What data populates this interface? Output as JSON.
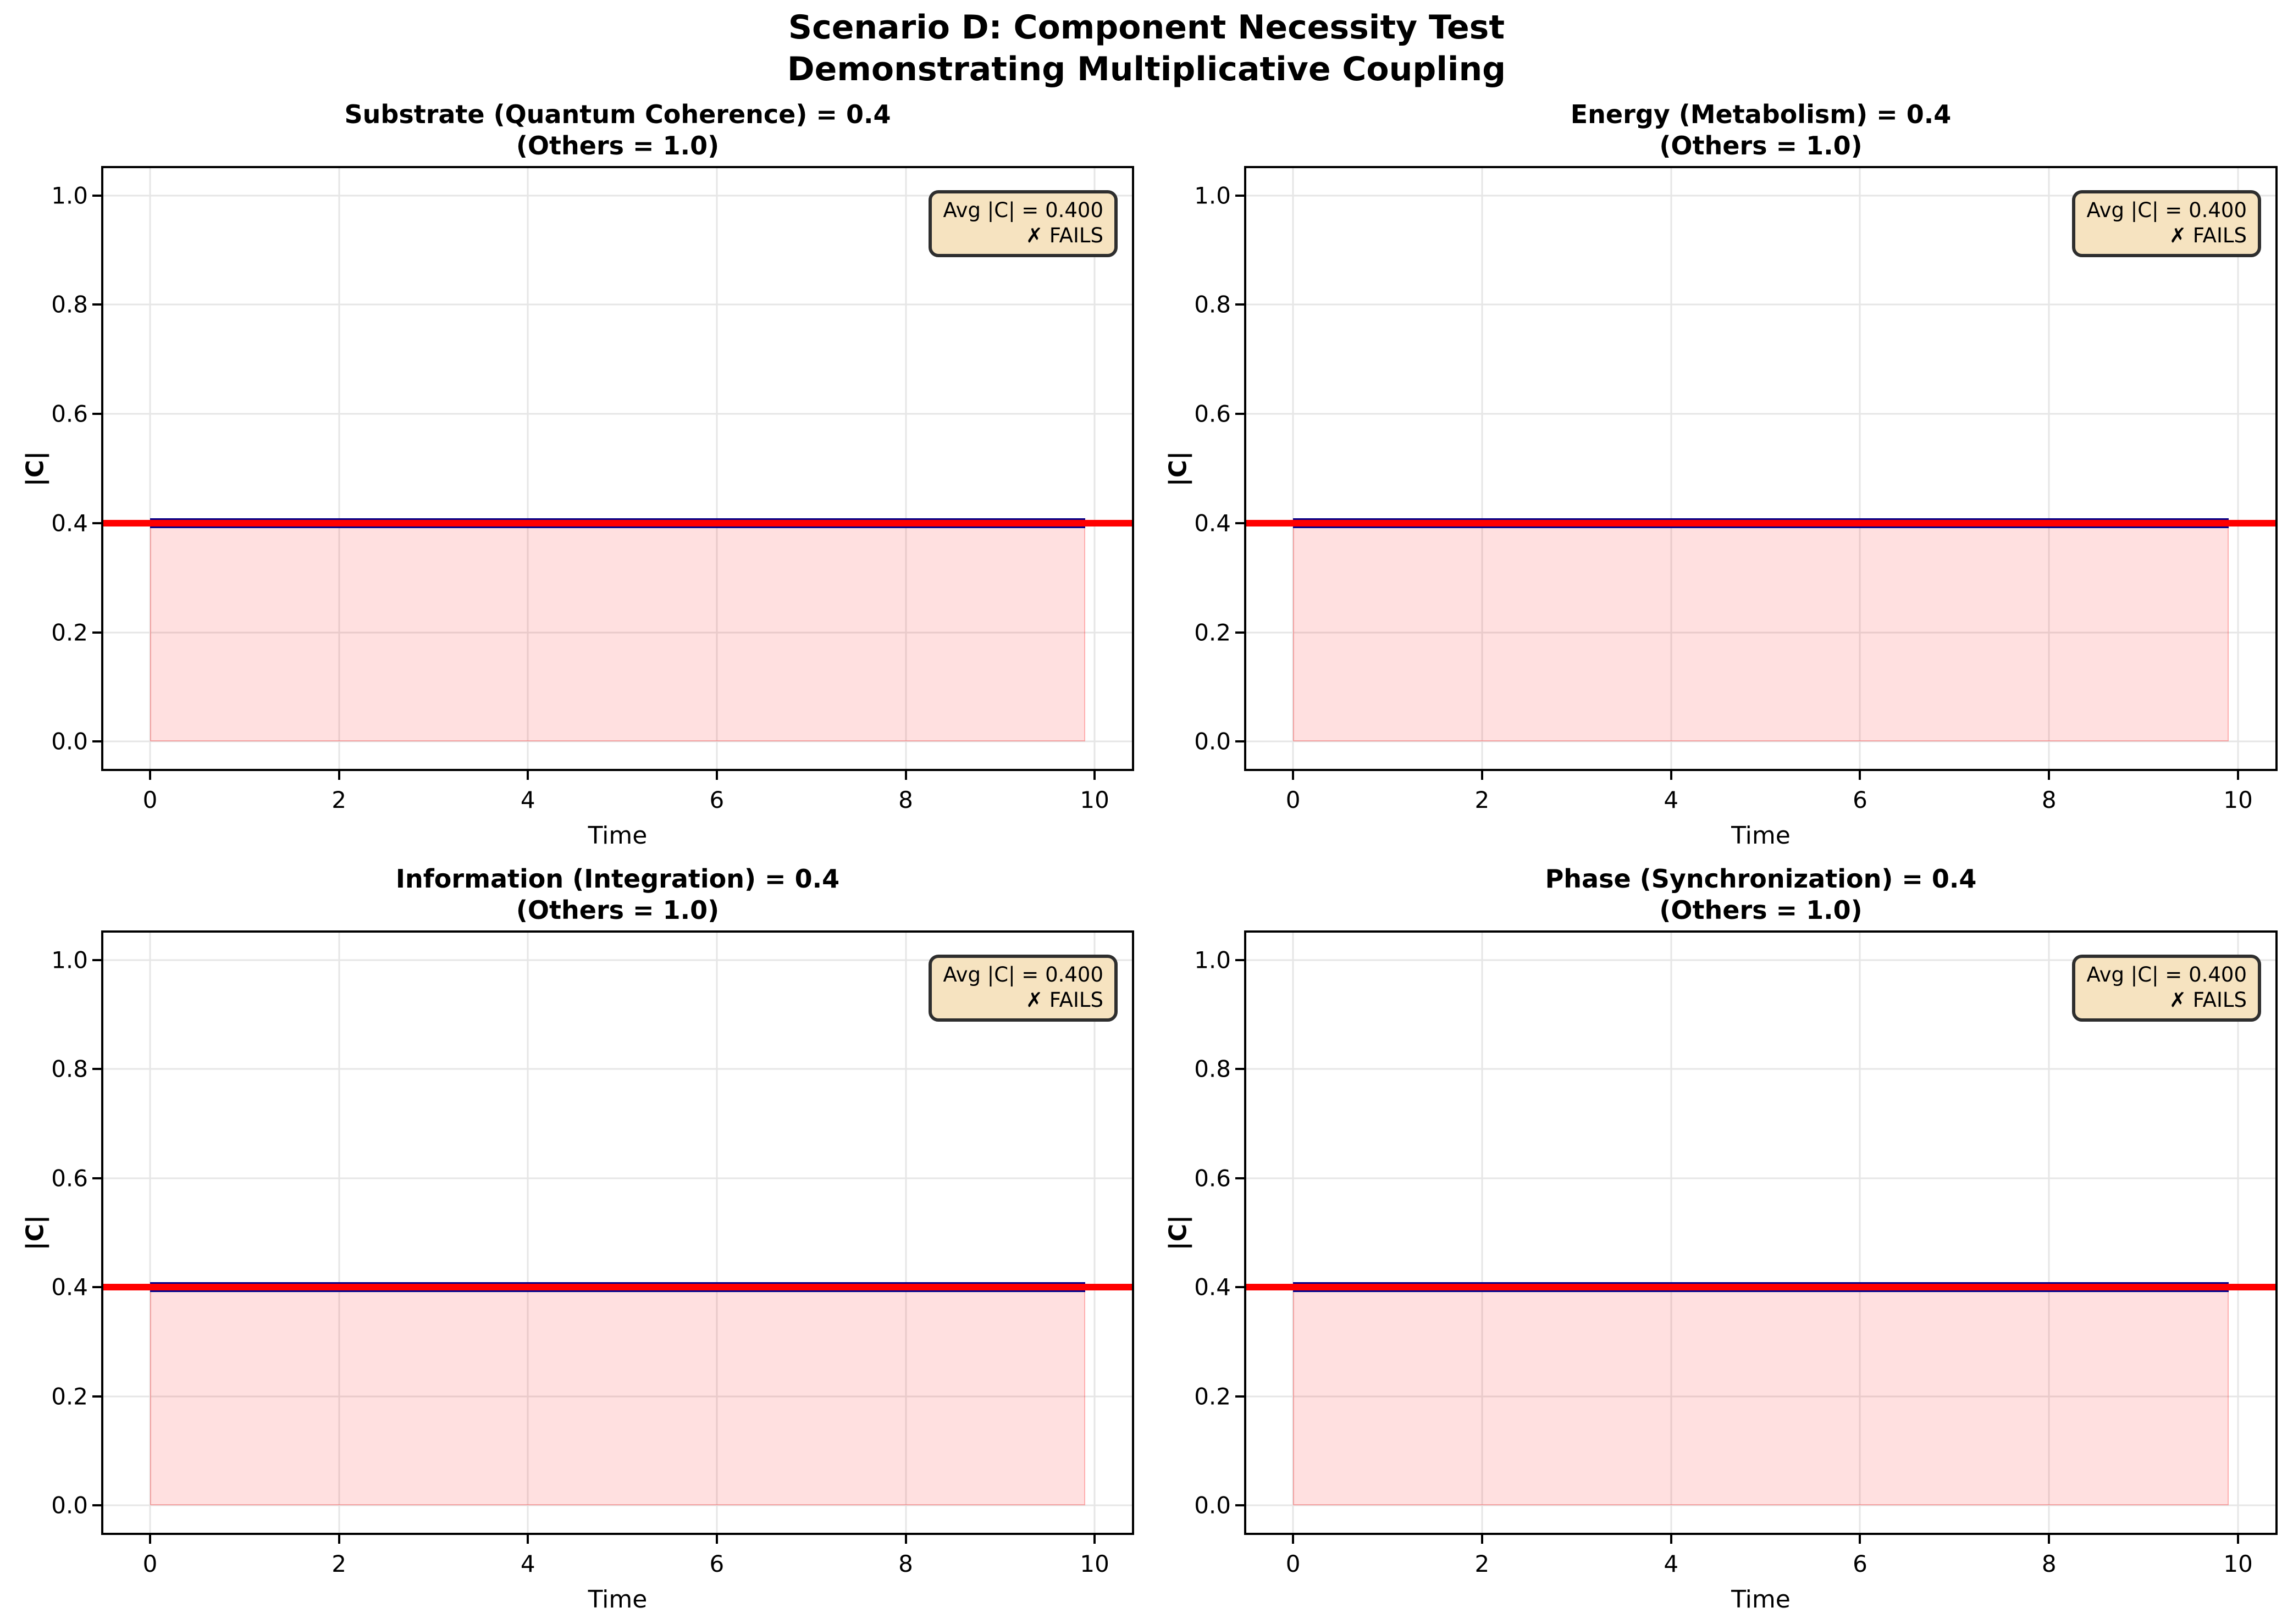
{
  "figure": {
    "suptitle_line1": "Scenario D: Component Necessity Test",
    "suptitle_line2": "Demonstrating Multiplicative Coupling"
  },
  "colors": {
    "threshold_line": "#ff0000",
    "series_line": "#00008b",
    "fill": "rgba(255,0,0,0.12)",
    "fill_edge": "rgba(255,0,0,0.22)",
    "annotation_bg": "#f6e3c0",
    "annotation_border": "#2e2e2e",
    "grid": "#e6e6e6",
    "spine": "#000000"
  },
  "chart_data": {
    "type": "line",
    "layout": "2x2 subplots",
    "xlabel": "Time",
    "ylabel": "|C|",
    "xlim": [
      -0.495,
      10.395
    ],
    "ylim": [
      -0.05,
      1.05
    ],
    "xticks": [
      "0",
      "2",
      "4",
      "6",
      "8",
      "10"
    ],
    "xtick_values": [
      0,
      2,
      4,
      6,
      8,
      10
    ],
    "yticks": [
      "0.0",
      "0.2",
      "0.4",
      "0.6",
      "0.8",
      "1.0"
    ],
    "ytick_values": [
      0.0,
      0.2,
      0.4,
      0.6,
      0.8,
      1.0
    ],
    "grid": true,
    "x_range": [
      0,
      9.9
    ],
    "subplots": [
      {
        "title_line1": "Substrate (Quantum Coherence) = 0.4",
        "title_line2": "(Others = 1.0)",
        "series_y": 0.4,
        "threshold_y": 0.4,
        "avg_c": 0.4,
        "avg_label": "Avg |C| = 0.400",
        "result_label": "✗ FAILS"
      },
      {
        "title_line1": "Energy (Metabolism) = 0.4",
        "title_line2": "(Others = 1.0)",
        "series_y": 0.4,
        "threshold_y": 0.4,
        "avg_c": 0.4,
        "avg_label": "Avg |C| = 0.400",
        "result_label": "✗ FAILS"
      },
      {
        "title_line1": "Information (Integration) = 0.4",
        "title_line2": "(Others = 1.0)",
        "series_y": 0.4,
        "threshold_y": 0.4,
        "avg_c": 0.4,
        "avg_label": "Avg |C| = 0.400",
        "result_label": "✗ FAILS"
      },
      {
        "title_line1": "Phase (Synchronization) = 0.4",
        "title_line2": "(Others = 1.0)",
        "series_y": 0.4,
        "threshold_y": 0.4,
        "avg_c": 0.4,
        "avg_label": "Avg |C| = 0.400",
        "result_label": "✗ FAILS"
      }
    ]
  }
}
